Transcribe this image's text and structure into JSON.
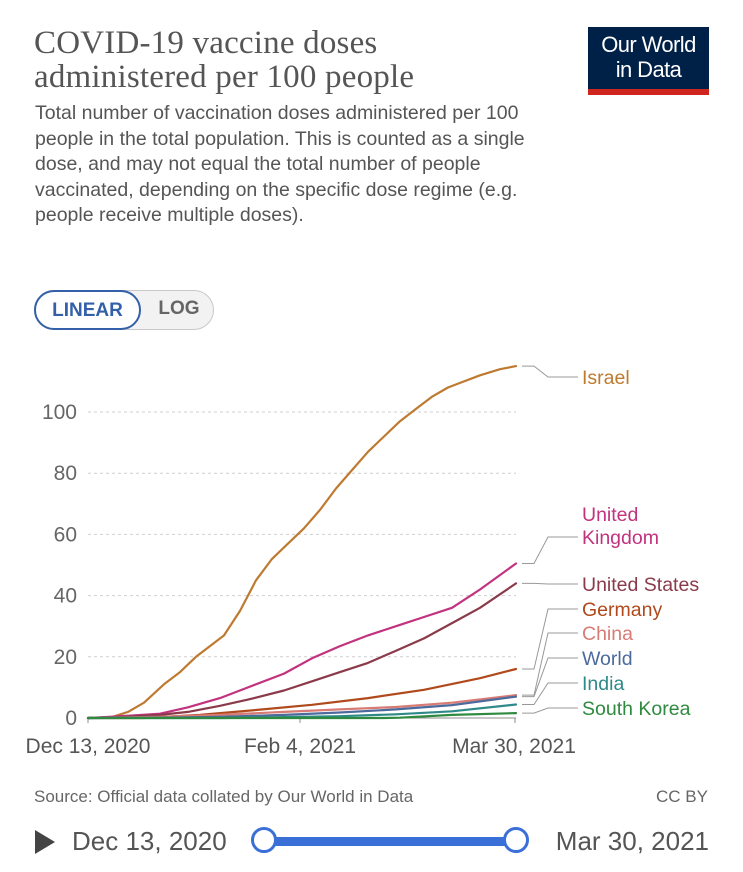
{
  "header": {
    "title": "COVID-19 vaccine doses administered per 100 people",
    "subtitle": "Total number of vaccination doses administered per 100 people in the total population. This is counted as a single dose, and may not equal the total number of people vaccinated, depending on the specific dose regime (e.g. people receive multiple doses).",
    "logo_line1": "Our World",
    "logo_line2": "in Data"
  },
  "scale_toggle": {
    "linear_label": "LINEAR",
    "log_label": "LOG",
    "selected": "LINEAR"
  },
  "footer": {
    "source": "Source: Official data collated by Our World in Data",
    "license": "CC BY"
  },
  "timeline": {
    "start_label": "Dec 13, 2020",
    "end_label": "Mar 30, 2021",
    "range_start_fraction": 0.0,
    "range_end_fraction": 1.0,
    "play_icon": "play-icon"
  },
  "chart_data": {
    "type": "line",
    "x_type": "date",
    "x_ticks": [
      "Dec 13, 2020",
      "Feb 4, 2021",
      "Mar 30, 2021"
    ],
    "xlim": [
      "2020-12-13",
      "2021-03-30"
    ],
    "y_ticks": [
      0,
      20,
      40,
      60,
      80,
      100
    ],
    "ylim": [
      0,
      117
    ],
    "grid": "horizontal dashed",
    "legend": "right end labels",
    "series": [
      {
        "name": "Israel",
        "color": "#be7a30",
        "points": [
          [
            "2020-12-13",
            0
          ],
          [
            "2020-12-19",
            0.3
          ],
          [
            "2020-12-23",
            2
          ],
          [
            "2020-12-27",
            5
          ],
          [
            "2021-01-01",
            11
          ],
          [
            "2021-01-05",
            15
          ],
          [
            "2021-01-09",
            20
          ],
          [
            "2021-01-12",
            23
          ],
          [
            "2021-01-16",
            27
          ],
          [
            "2021-01-20",
            35
          ],
          [
            "2021-01-24",
            45
          ],
          [
            "2021-01-28",
            52
          ],
          [
            "2021-02-01",
            57
          ],
          [
            "2021-02-05",
            62
          ],
          [
            "2021-02-09",
            68
          ],
          [
            "2021-02-13",
            75
          ],
          [
            "2021-02-17",
            81
          ],
          [
            "2021-02-21",
            87
          ],
          [
            "2021-02-25",
            92
          ],
          [
            "2021-03-01",
            97
          ],
          [
            "2021-03-05",
            101
          ],
          [
            "2021-03-09",
            105
          ],
          [
            "2021-03-13",
            108
          ],
          [
            "2021-03-17",
            110
          ],
          [
            "2021-03-21",
            112
          ],
          [
            "2021-03-26",
            114
          ],
          [
            "2021-03-30",
            115
          ]
        ]
      },
      {
        "name": "United Kingdom",
        "color": "#c2327e",
        "points": [
          [
            "2020-12-13",
            0
          ],
          [
            "2020-12-20",
            0.5
          ],
          [
            "2020-12-31",
            1.4
          ],
          [
            "2021-01-07",
            3.5
          ],
          [
            "2021-01-15",
            6.5
          ],
          [
            "2021-01-22",
            10
          ],
          [
            "2021-01-31",
            14.5
          ],
          [
            "2021-02-07",
            19.5
          ],
          [
            "2021-02-14",
            23.5
          ],
          [
            "2021-02-21",
            27
          ],
          [
            "2021-02-28",
            30
          ],
          [
            "2021-03-07",
            33
          ],
          [
            "2021-03-14",
            36
          ],
          [
            "2021-03-21",
            42
          ],
          [
            "2021-03-30",
            50.5
          ]
        ]
      },
      {
        "name": "United States",
        "color": "#8b3a4a",
        "points": [
          [
            "2020-12-13",
            0
          ],
          [
            "2020-12-20",
            0.2
          ],
          [
            "2020-12-31",
            1
          ],
          [
            "2021-01-07",
            2
          ],
          [
            "2021-01-15",
            4
          ],
          [
            "2021-01-22",
            6
          ],
          [
            "2021-01-31",
            9
          ],
          [
            "2021-02-07",
            12
          ],
          [
            "2021-02-14",
            15
          ],
          [
            "2021-02-21",
            18
          ],
          [
            "2021-02-28",
            22
          ],
          [
            "2021-03-07",
            26
          ],
          [
            "2021-03-14",
            31
          ],
          [
            "2021-03-21",
            36
          ],
          [
            "2021-03-30",
            44
          ]
        ]
      },
      {
        "name": "Germany",
        "color": "#b0491b",
        "points": [
          [
            "2020-12-13",
            0
          ],
          [
            "2020-12-27",
            0
          ],
          [
            "2021-01-10",
            1
          ],
          [
            "2021-01-24",
            2.6
          ],
          [
            "2021-02-07",
            4.3
          ],
          [
            "2021-02-21",
            6.5
          ],
          [
            "2021-03-07",
            9.2
          ],
          [
            "2021-03-21",
            13
          ],
          [
            "2021-03-30",
            16
          ]
        ]
      },
      {
        "name": "China",
        "color": "#d97b75",
        "points": [
          [
            "2020-12-13",
            0
          ],
          [
            "2020-12-31",
            0.4
          ],
          [
            "2021-01-15",
            1
          ],
          [
            "2021-01-31",
            2
          ],
          [
            "2021-02-14",
            2.8
          ],
          [
            "2021-02-28",
            3.6
          ],
          [
            "2021-03-14",
            5
          ],
          [
            "2021-03-30",
            7.5
          ]
        ]
      },
      {
        "name": "World",
        "color": "#4c6a9c",
        "points": [
          [
            "2020-12-13",
            0
          ],
          [
            "2020-12-31",
            0.1
          ],
          [
            "2021-01-15",
            0.4
          ],
          [
            "2021-01-31",
            1
          ],
          [
            "2021-02-14",
            1.8
          ],
          [
            "2021-02-28",
            2.8
          ],
          [
            "2021-03-14",
            4.2
          ],
          [
            "2021-03-30",
            7
          ]
        ]
      },
      {
        "name": "India",
        "color": "#2e8a89",
        "points": [
          [
            "2020-12-13",
            0
          ],
          [
            "2021-01-16",
            0
          ],
          [
            "2021-01-31",
            0.3
          ],
          [
            "2021-02-14",
            0.6
          ],
          [
            "2021-02-28",
            1.2
          ],
          [
            "2021-03-14",
            2.2
          ],
          [
            "2021-03-30",
            4.4
          ]
        ]
      },
      {
        "name": "South Korea",
        "color": "#2e8a3e",
        "points": [
          [
            "2020-12-13",
            0
          ],
          [
            "2021-02-25",
            0
          ],
          [
            "2021-03-01",
            0.1
          ],
          [
            "2021-03-14",
            1
          ],
          [
            "2021-03-30",
            1.6
          ]
        ]
      }
    ]
  }
}
